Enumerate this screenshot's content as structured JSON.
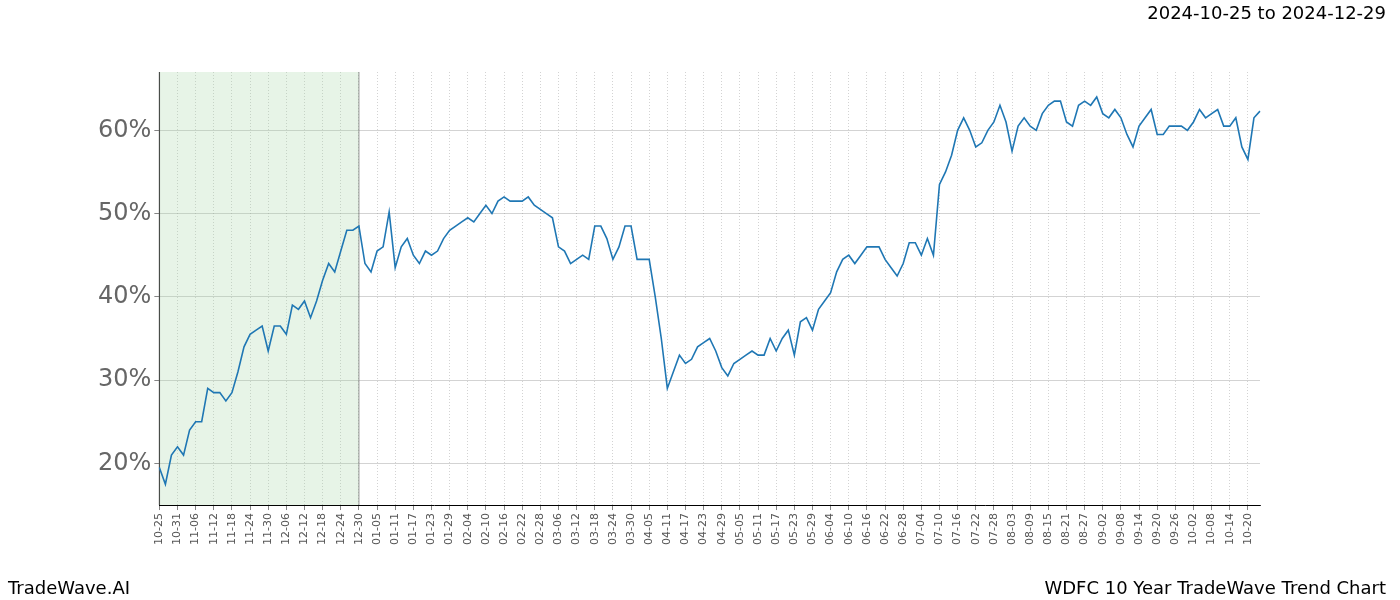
{
  "chart_data": {
    "type": "line",
    "title": "2024-10-25 to 2024-12-29",
    "footer_left": "TradeWave.AI",
    "footer_right": "WDFC 10 Year TradeWave Trend Chart",
    "categories": [
      "10-25",
      null,
      null,
      "10-31",
      null,
      null,
      "11-06",
      null,
      null,
      "11-12",
      null,
      null,
      "11-18",
      null,
      null,
      "11-24",
      null,
      null,
      "11-30",
      null,
      null,
      "12-06",
      null,
      null,
      "12-12",
      null,
      null,
      "12-18",
      null,
      null,
      "12-24",
      null,
      null,
      "12-30",
      null,
      null,
      "01-05",
      null,
      null,
      "01-11",
      null,
      null,
      "01-17",
      null,
      null,
      "01-23",
      null,
      null,
      "01-29",
      null,
      null,
      "02-04",
      null,
      null,
      "02-10",
      null,
      null,
      "02-16",
      null,
      null,
      "02-22",
      null,
      null,
      "02-28",
      null,
      null,
      "03-06",
      null,
      null,
      "03-12",
      null,
      null,
      "03-18",
      null,
      null,
      "03-24",
      null,
      null,
      "03-30",
      null,
      null,
      "04-05",
      null,
      null,
      "04-11",
      null,
      null,
      "04-17",
      null,
      null,
      "04-23",
      null,
      null,
      "04-29",
      null,
      null,
      "05-05",
      null,
      null,
      "05-11",
      null,
      null,
      "05-17",
      null,
      null,
      "05-23",
      null,
      null,
      "05-29",
      null,
      null,
      "06-04",
      null,
      null,
      "06-10",
      null,
      null,
      "06-16",
      null,
      null,
      "06-22",
      null,
      null,
      "06-28",
      null,
      null,
      "07-04",
      null,
      null,
      "07-10",
      null,
      null,
      "07-16",
      null,
      null,
      "07-22",
      null,
      null,
      "07-28",
      null,
      null,
      "08-03",
      null,
      null,
      "08-09",
      null,
      null,
      "08-15",
      null,
      null,
      "08-21",
      null,
      null,
      "08-27",
      null,
      null,
      "09-02",
      null,
      null,
      "09-08",
      null,
      null,
      "09-14",
      null,
      null,
      "09-20",
      null,
      null,
      "09-26",
      null,
      null,
      "10-02",
      null,
      null,
      "10-08",
      null,
      null,
      "10-14",
      null,
      null,
      "10-20",
      null,
      null
    ],
    "values": [
      19.5,
      17.5,
      21,
      22,
      21,
      24,
      25,
      25,
      29,
      28.5,
      28.5,
      27.5,
      28.5,
      31,
      34,
      35.5,
      36,
      36.5,
      33.5,
      36.5,
      36.5,
      35.5,
      39,
      38.5,
      39.5,
      37.5,
      39.5,
      42,
      44,
      43,
      45.5,
      48,
      48,
      48.5,
      44,
      43,
      45.5,
      46,
      50.2,
      43.5,
      46,
      47,
      45,
      44,
      45.5,
      45,
      45.5,
      47,
      48,
      48.5,
      49,
      49.5,
      49,
      50,
      51,
      50,
      51.5,
      52,
      51.5,
      51.5,
      51.5,
      52,
      51,
      50.5,
      50,
      49.5,
      46,
      45.5,
      44,
      44.5,
      45,
      44.5,
      48.5,
      48.5,
      47,
      44.5,
      46,
      48.5,
      48.5,
      44.5,
      44.5,
      44.5,
      40,
      35,
      29,
      31,
      33,
      32,
      32.5,
      34,
      34.5,
      35,
      33.5,
      31.5,
      30.5,
      32,
      32.5,
      33,
      33.5,
      33,
      33,
      35,
      33.5,
      35,
      36,
      33,
      37,
      37.5,
      36,
      38.5,
      39.5,
      40.5,
      43,
      44.5,
      45,
      44,
      45,
      46,
      46,
      46,
      44.5,
      43.5,
      42.5,
      44,
      46.5,
      46.5,
      45,
      47,
      45,
      53.5,
      55,
      57,
      60,
      61.5,
      60,
      58,
      58.5,
      60,
      61,
      63,
      61,
      57.5,
      60.5,
      61.5,
      60.5,
      60,
      62,
      63,
      63.5,
      63.5,
      61,
      60.5,
      63,
      63.5,
      63,
      64,
      62,
      61.5,
      62.5,
      61.5,
      59.5,
      58,
      60.5,
      61.5,
      62.5,
      59.5,
      59.5,
      60.5,
      60.5,
      60.5,
      60,
      61,
      62.5,
      61.5,
      62,
      62.5,
      60.5,
      60.5,
      61.5,
      58,
      56.5,
      61.5,
      62.3
    ],
    "color": "#1f77b4",
    "highlight": {
      "from": "10-25",
      "to": "12-30"
    },
    "ylim": [
      15,
      67
    ],
    "yticks": [
      {
        "value": 20,
        "label": "20%"
      },
      {
        "value": 30,
        "label": "30%"
      },
      {
        "value": 40,
        "label": "40%"
      },
      {
        "value": 50,
        "label": "50%"
      },
      {
        "value": 60,
        "label": "60%"
      }
    ],
    "grid": true
  }
}
